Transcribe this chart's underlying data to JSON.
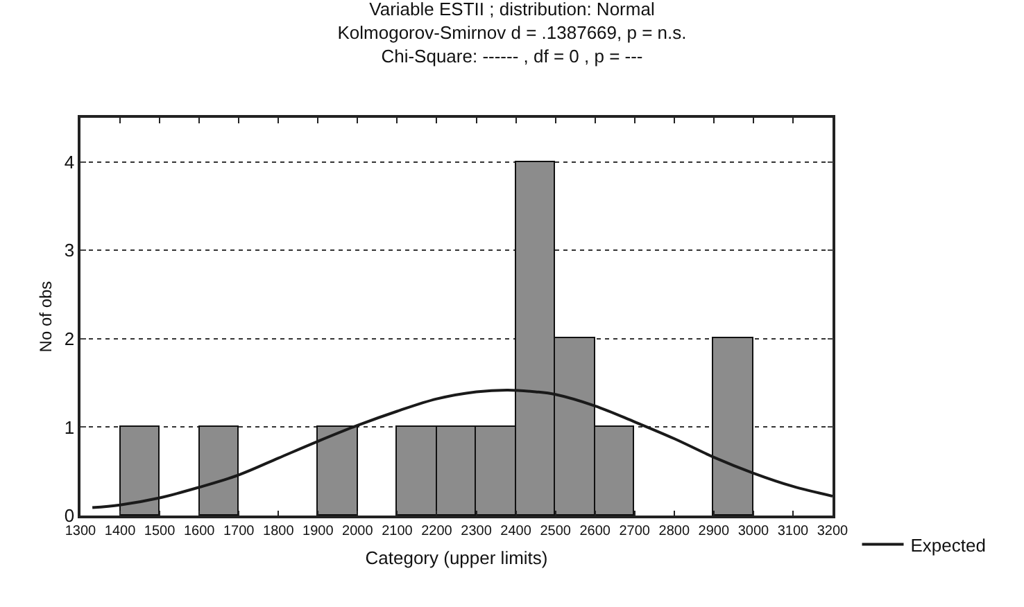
{
  "chart_data": {
    "type": "histogram",
    "title": "Variable ESTII ; distribution: Normal",
    "subtitle": "Kolmogorov-Smirnov d = .1387669, p = n.s.\nChi-Square: ------ , df = 0 , p = ---",
    "xlabel": "Category (upper limits)",
    "ylabel": "No of obs",
    "bins": [
      1300,
      1400,
      1500,
      1600,
      1700,
      1800,
      1900,
      2000,
      2100,
      2200,
      2300,
      2400,
      2500,
      2600,
      2700,
      2800,
      2900,
      3000,
      3100,
      3200
    ],
    "values": [
      0,
      1,
      0,
      1,
      0,
      0,
      1,
      0,
      1,
      1,
      1,
      4,
      2,
      1,
      0,
      0,
      2,
      0,
      0
    ],
    "color": "#8c8c8c",
    "series": [
      {
        "name": "Expected",
        "type": "line",
        "color": "#1a1a1a",
        "x": [
          1330,
          1400,
          1500,
          1600,
          1700,
          1800,
          1900,
          2000,
          2100,
          2200,
          2300,
          2380,
          2450,
          2500,
          2600,
          2700,
          2800,
          2900,
          3000,
          3100,
          3200
        ],
        "values": [
          0.09,
          0.12,
          0.2,
          0.32,
          0.46,
          0.65,
          0.84,
          1.02,
          1.18,
          1.32,
          1.4,
          1.42,
          1.4,
          1.37,
          1.24,
          1.06,
          0.87,
          0.66,
          0.48,
          0.33,
          0.22
        ]
      }
    ],
    "xlim": [
      1300,
      3200
    ],
    "xticks": [
      1300,
      1400,
      1500,
      1600,
      1700,
      1800,
      1900,
      2000,
      2100,
      2200,
      2300,
      2400,
      2500,
      2600,
      2700,
      2800,
      2900,
      3000,
      3100,
      3200
    ],
    "ylim": [
      0,
      4.5
    ],
    "yticks": [
      0,
      1,
      2,
      3,
      4
    ],
    "grid": "y",
    "legend": "bottom right"
  }
}
